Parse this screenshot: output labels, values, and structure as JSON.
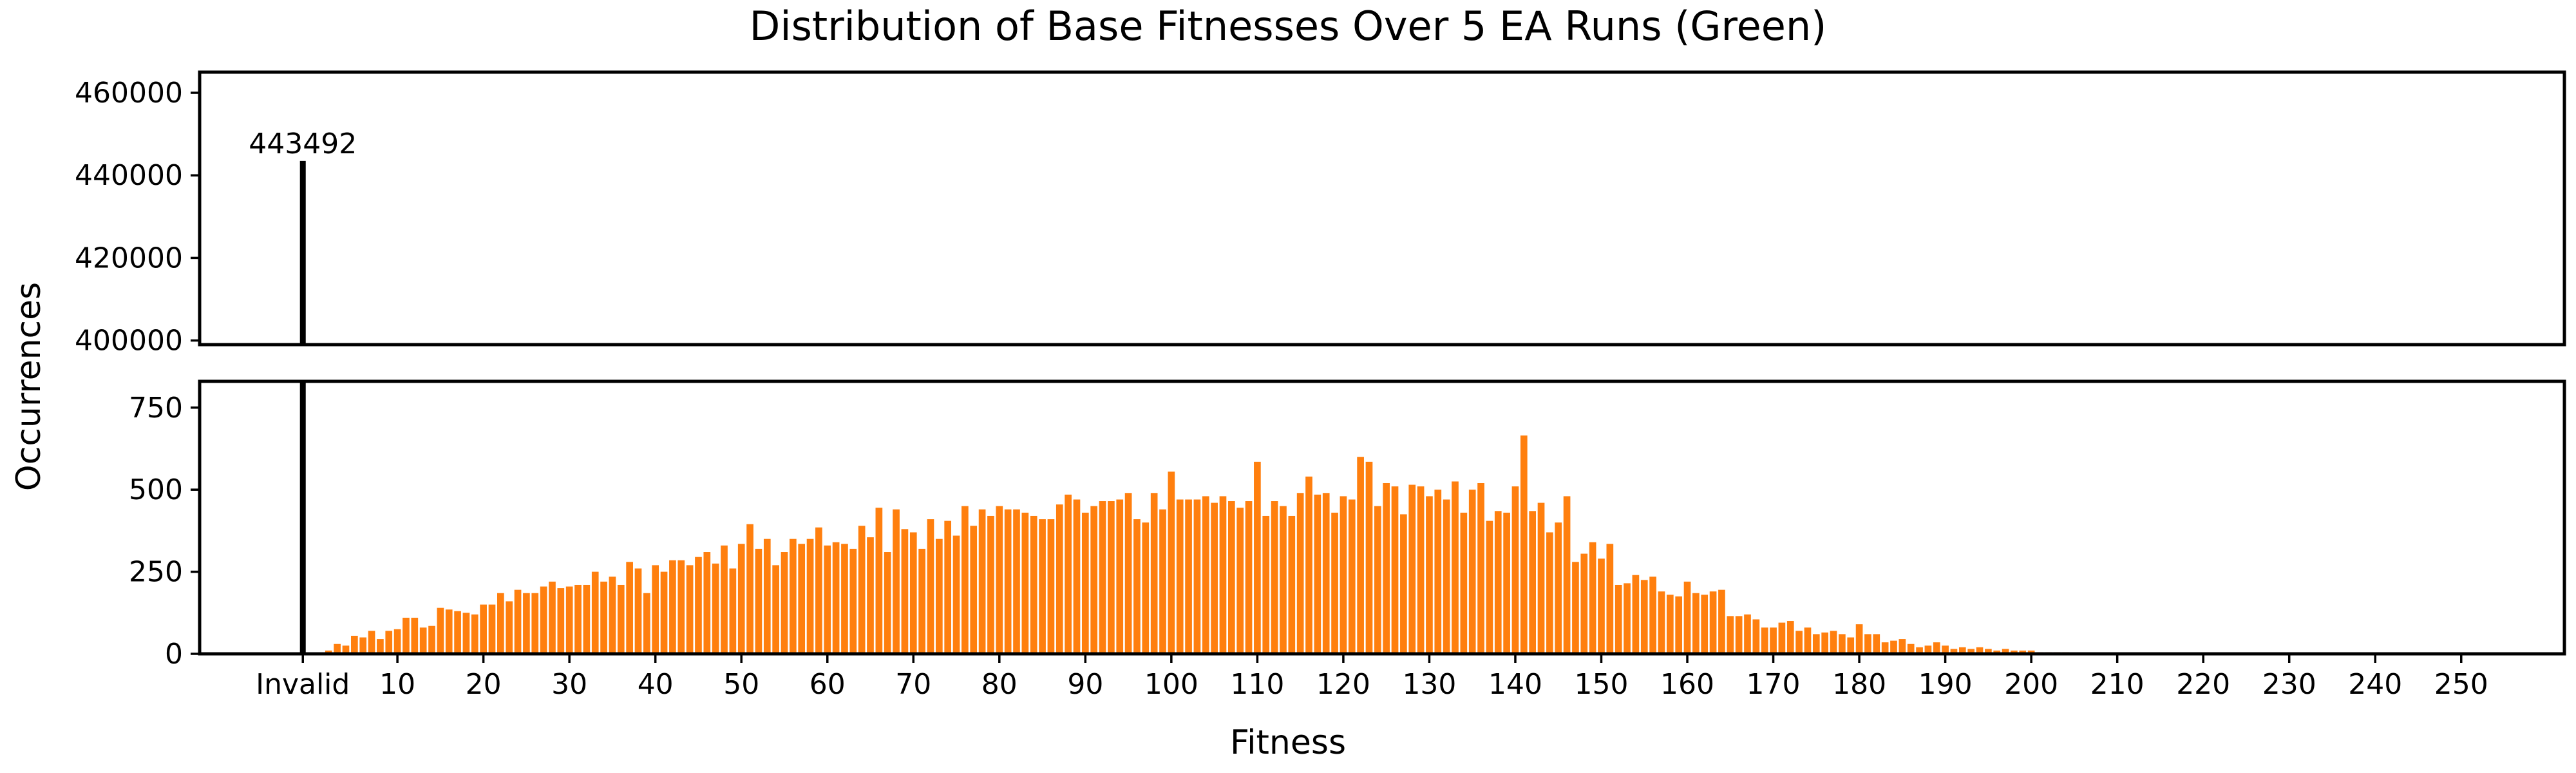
{
  "chart_data": {
    "type": "bar",
    "title": "Distribution of Base Fitnesses Over 5 EA Runs (Green)",
    "xlabel": "Fitness",
    "ylabel": "Occurrences",
    "broken_y_axis": true,
    "xlim": [
      -13,
      262
    ],
    "xticks": [
      {
        "value": -1,
        "label": "Invalid"
      },
      {
        "value": 10,
        "label": "10"
      },
      {
        "value": 20,
        "label": "20"
      },
      {
        "value": 30,
        "label": "30"
      },
      {
        "value": 40,
        "label": "40"
      },
      {
        "value": 50,
        "label": "50"
      },
      {
        "value": 60,
        "label": "60"
      },
      {
        "value": 70,
        "label": "70"
      },
      {
        "value": 80,
        "label": "80"
      },
      {
        "value": 90,
        "label": "90"
      },
      {
        "value": 100,
        "label": "100"
      },
      {
        "value": 110,
        "label": "110"
      },
      {
        "value": 120,
        "label": "120"
      },
      {
        "value": 130,
        "label": "130"
      },
      {
        "value": 140,
        "label": "140"
      },
      {
        "value": 150,
        "label": "150"
      },
      {
        "value": 160,
        "label": "160"
      },
      {
        "value": 170,
        "label": "170"
      },
      {
        "value": 180,
        "label": "180"
      },
      {
        "value": 190,
        "label": "190"
      },
      {
        "value": 200,
        "label": "200"
      },
      {
        "value": 210,
        "label": "210"
      },
      {
        "value": 220,
        "label": "220"
      },
      {
        "value": 230,
        "label": "230"
      },
      {
        "value": 240,
        "label": "240"
      },
      {
        "value": 250,
        "label": "250"
      }
    ],
    "upper_panel": {
      "ylim": [
        399000,
        465000
      ],
      "yticks": [
        "400000",
        "420000",
        "440000",
        "460000"
      ]
    },
    "lower_panel": {
      "ylim": [
        0,
        830
      ],
      "yticks": [
        "0",
        "250",
        "500",
        "750"
      ]
    },
    "invalid_bar": {
      "x": -1,
      "value": 443492,
      "label": "443492",
      "color": "#000000"
    },
    "valid_series": {
      "color": "#ff7f0e",
      "x_start": 1,
      "values": [
        0,
        10,
        30,
        25,
        55,
        50,
        70,
        45,
        70,
        75,
        110,
        110,
        80,
        85,
        140,
        135,
        130,
        125,
        120,
        150,
        150,
        185,
        160,
        195,
        185,
        185,
        205,
        220,
        200,
        205,
        210,
        210,
        250,
        220,
        235,
        210,
        280,
        260,
        185,
        270,
        250,
        285,
        285,
        270,
        295,
        310,
        275,
        330,
        260,
        335,
        395,
        320,
        350,
        270,
        310,
        350,
        335,
        350,
        385,
        330,
        340,
        335,
        320,
        390,
        355,
        445,
        310,
        440,
        380,
        370,
        320,
        410,
        350,
        405,
        360,
        450,
        390,
        440,
        420,
        450,
        440,
        440,
        430,
        420,
        410,
        410,
        455,
        485,
        470,
        430,
        450,
        465,
        465,
        470,
        490,
        410,
        400,
        490,
        440,
        555,
        470,
        470,
        470,
        480,
        460,
        480,
        465,
        445,
        465,
        585,
        420,
        465,
        450,
        420,
        490,
        540,
        485,
        490,
        430,
        480,
        470,
        600,
        585,
        450,
        520,
        510,
        425,
        515,
        510,
        480,
        500,
        470,
        525,
        430,
        500,
        520,
        405,
        435,
        430,
        510,
        665,
        435,
        460,
        370,
        400,
        480,
        280,
        305,
        340,
        290,
        335,
        210,
        215,
        240,
        225,
        235,
        190,
        180,
        175,
        220,
        185,
        180,
        190,
        195,
        115,
        115,
        120,
        105,
        80,
        80,
        95,
        100,
        70,
        80,
        60,
        65,
        70,
        60,
        50,
        90,
        60,
        60,
        35,
        40,
        45,
        30,
        20,
        25,
        35,
        25,
        15,
        20,
        15,
        20,
        15,
        10,
        15,
        10,
        10,
        10,
        5,
        5,
        5,
        5,
        2,
        2,
        1,
        1,
        1,
        0,
        0,
        0,
        0,
        0,
        0,
        0,
        0,
        0,
        0,
        0,
        0,
        0,
        0,
        0,
        0,
        0,
        0,
        0,
        0,
        0,
        0,
        0,
        0,
        0,
        0,
        0,
        0,
        0,
        0,
        0,
        0,
        0,
        0,
        0,
        0,
        0,
        0,
        0,
        0,
        0,
        0,
        0,
        0,
        0,
        0,
        0,
        0,
        0,
        0,
        0,
        0,
        0,
        0,
        0,
        0,
        0,
        0,
        0,
        0
      ]
    },
    "grid": false,
    "legend": "none"
  }
}
